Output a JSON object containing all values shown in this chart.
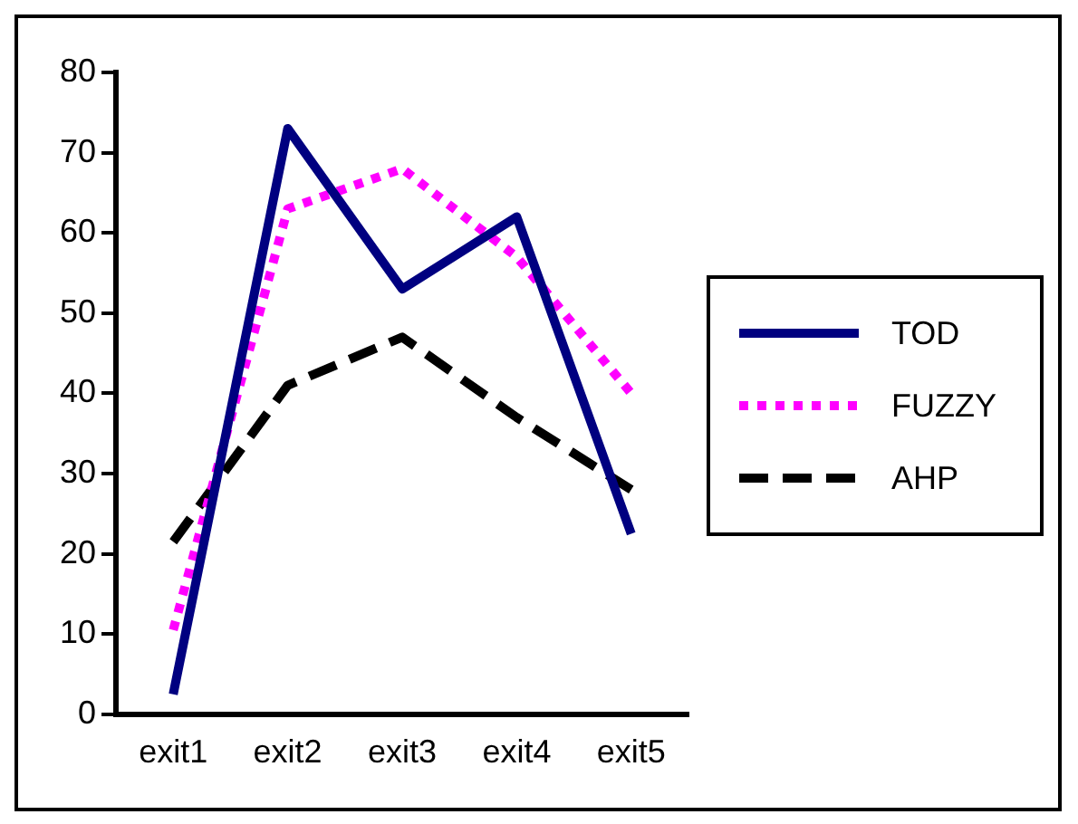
{
  "chart_data": {
    "type": "line",
    "categories": [
      "exit1",
      "exit2",
      "exit3",
      "exit4",
      "exit5"
    ],
    "series": [
      {
        "name": "TOD",
        "color": "#000080",
        "line_style": "solid",
        "values": [
          2.5,
          73,
          53,
          62,
          22.5
        ]
      },
      {
        "name": "FUZZY",
        "color": "#ff00ff",
        "line_style": "dotted",
        "values": [
          10.5,
          63,
          68,
          57,
          40
        ]
      },
      {
        "name": "AHP",
        "color": "#000000",
        "line_style": "dashed",
        "values": [
          21.5,
          41,
          47,
          37,
          28
        ]
      }
    ],
    "ylim": [
      0,
      80
    ],
    "yticks": [
      0,
      10,
      20,
      30,
      40,
      50,
      60,
      70,
      80
    ],
    "grid": false,
    "legend": "right",
    "marker": "none"
  }
}
